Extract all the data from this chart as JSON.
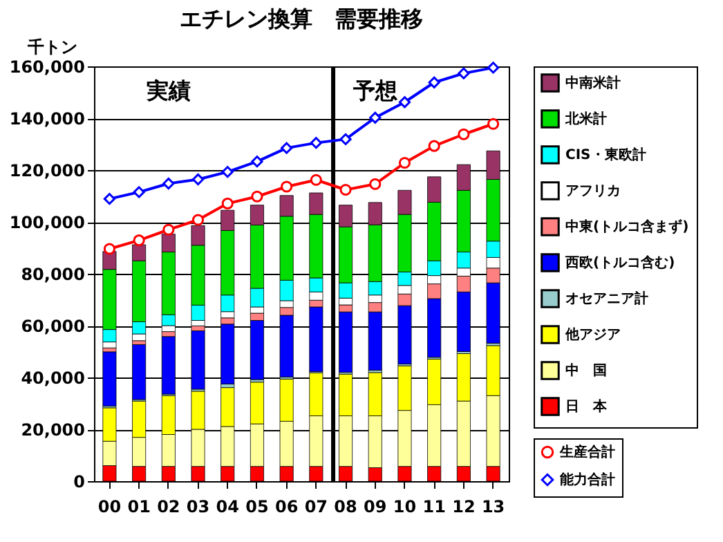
{
  "chart_data": {
    "type": "bar",
    "stacked": true,
    "title": "エチレン換算　需要推移",
    "ylabel": "千トン",
    "categories": [
      "00",
      "01",
      "02",
      "03",
      "04",
      "05",
      "06",
      "07",
      "08",
      "09",
      "10",
      "11",
      "12",
      "13"
    ],
    "ylim": [
      0,
      160000
    ],
    "yticks": [
      0,
      {
        "value": 20000,
        "label": "20,000"
      },
      {
        "value": 40000,
        "label": "40,000"
      },
      {
        "value": 60000,
        "label": "60,000"
      },
      {
        "value": 80000,
        "label": "80,000"
      },
      {
        "value": 100000,
        "label": "100,000"
      },
      {
        "value": 120000,
        "label": "120,000"
      },
      {
        "value": 140000,
        "label": "140,000"
      },
      {
        "value": 160000,
        "label": "160,000"
      }
    ],
    "grid": "y",
    "legend": "right",
    "annotations": [
      "実績",
      "予想"
    ],
    "ref_lines": [
      {
        "axis": "x",
        "value": "08",
        "color": "#000000"
      }
    ],
    "series": [
      {
        "name": "日　本",
        "color": "#ff0000",
        "values": [
          6000,
          5700,
          5700,
          5700,
          5700,
          5700,
          5700,
          5700,
          5700,
          5200,
          5700,
          5700,
          5700,
          5700
        ]
      },
      {
        "name": "中　国",
        "color": "#ffff99",
        "values": [
          9400,
          11200,
          12300,
          14300,
          15400,
          16400,
          17400,
          19500,
          19500,
          20000,
          21600,
          23800,
          25200,
          27300
        ]
      },
      {
        "name": "他アジア",
        "color": "#ffff00",
        "values": [
          12900,
          14000,
          15000,
          14700,
          15000,
          16100,
          16300,
          16600,
          16100,
          16700,
          17200,
          17600,
          18300,
          19300
        ]
      },
      {
        "name": "オセアニア計",
        "color": "#99cccc",
        "values": [
          700,
          600,
          600,
          800,
          1400,
          1000,
          800,
          500,
          700,
          900,
          700,
          700,
          800,
          900
        ]
      },
      {
        "name": "西欧(トルコ含む)",
        "color": "#0000ff",
        "values": [
          20900,
          21200,
          22200,
          22500,
          23100,
          22800,
          23800,
          24900,
          23300,
          22500,
          22500,
          22600,
          23000,
          23300
        ]
      },
      {
        "name": "中東(トルコ含まず)",
        "color": "#ff8080",
        "values": [
          1500,
          1500,
          1900,
          1900,
          2400,
          2800,
          3000,
          2600,
          2700,
          3600,
          4500,
          5700,
          6100,
          5700
        ]
      },
      {
        "name": "アフリカ",
        "color": "#ffffff",
        "values": [
          2300,
          2600,
          2300,
          2100,
          2400,
          2400,
          2600,
          3200,
          2600,
          2900,
          3300,
          3200,
          3100,
          4100
        ]
      },
      {
        "name": "CIS・東欧計",
        "color": "#00ffff",
        "values": [
          4800,
          4700,
          4200,
          5900,
          6400,
          7200,
          7900,
          5400,
          5900,
          5200,
          5200,
          5700,
          6200,
          6300
        ]
      },
      {
        "name": "北米計",
        "color": "#00dd00",
        "values": [
          23200,
          23500,
          24200,
          23100,
          24900,
          24400,
          24700,
          24500,
          21600,
          21900,
          22200,
          22600,
          23800,
          23800
        ]
      },
      {
        "name": "中南米計",
        "color": "#993366",
        "values": [
          6900,
          6200,
          6900,
          7600,
          7800,
          7700,
          8000,
          8300,
          8400,
          8600,
          9300,
          9800,
          9900,
          11000
        ]
      },
      {
        "name": "生産合計",
        "type": "line",
        "marker": "circle",
        "color": "#ff0000",
        "values": [
          89600,
          92900,
          97000,
          100800,
          107100,
          109800,
          113600,
          116200,
          112400,
          114600,
          122800,
          129300,
          133800,
          137800
        ]
      },
      {
        "name": "能力合計",
        "type": "line",
        "marker": "diamond",
        "color": "#0000ff",
        "values": [
          108900,
          111500,
          114800,
          116400,
          119300,
          123300,
          128500,
          130500,
          131900,
          140200,
          146200,
          153800,
          157300,
          159500
        ]
      }
    ]
  }
}
